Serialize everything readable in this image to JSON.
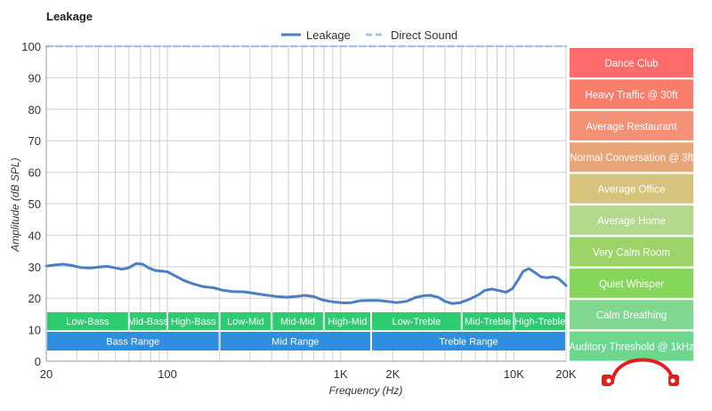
{
  "chart_data": {
    "type": "line",
    "title": "Leakage",
    "xlabel": "Frequency (Hz)",
    "ylabel": "Amplitude (dB SPL)",
    "x_scale": "log",
    "xlim": [
      20,
      20000
    ],
    "ylim": [
      0,
      100
    ],
    "x_ticks": [
      {
        "value": 20,
        "label": "20"
      },
      {
        "value": 100,
        "label": "100"
      },
      {
        "value": 1000,
        "label": "1K"
      },
      {
        "value": 2000,
        "label": "2K"
      },
      {
        "value": 10000,
        "label": "10K"
      },
      {
        "value": 20000,
        "label": "20K"
      }
    ],
    "y_ticks": [
      0,
      10,
      20,
      30,
      40,
      50,
      60,
      70,
      80,
      90,
      100
    ],
    "grid": true,
    "legend_position": "top-center",
    "series": [
      {
        "name": "Leakage",
        "color": "#4a7fc1",
        "style": "solid",
        "points": [
          [
            20,
            30.2
          ],
          [
            22,
            30.5
          ],
          [
            25,
            30.8
          ],
          [
            28,
            30.4
          ],
          [
            32,
            29.7
          ],
          [
            36,
            29.6
          ],
          [
            40,
            29.9
          ],
          [
            45,
            30.1
          ],
          [
            50,
            29.6
          ],
          [
            55,
            29.2
          ],
          [
            60,
            29.7
          ],
          [
            66,
            31.0
          ],
          [
            72,
            30.8
          ],
          [
            78,
            29.6
          ],
          [
            85,
            28.8
          ],
          [
            92,
            28.6
          ],
          [
            100,
            28.4
          ],
          [
            110,
            27.2
          ],
          [
            125,
            25.6
          ],
          [
            140,
            24.6
          ],
          [
            160,
            23.7
          ],
          [
            185,
            23.3
          ],
          [
            210,
            22.5
          ],
          [
            240,
            22.1
          ],
          [
            280,
            22.0
          ],
          [
            320,
            21.5
          ],
          [
            370,
            21.0
          ],
          [
            430,
            20.5
          ],
          [
            490,
            20.3
          ],
          [
            560,
            20.6
          ],
          [
            620,
            20.9
          ],
          [
            700,
            20.5
          ],
          [
            780,
            19.5
          ],
          [
            860,
            19.0
          ],
          [
            950,
            18.7
          ],
          [
            1050,
            18.5
          ],
          [
            1150,
            18.6
          ],
          [
            1300,
            19.2
          ],
          [
            1450,
            19.3
          ],
          [
            1650,
            19.3
          ],
          [
            1850,
            19.0
          ],
          [
            2100,
            18.6
          ],
          [
            2400,
            19.0
          ],
          [
            2700,
            20.2
          ],
          [
            3000,
            20.8
          ],
          [
            3300,
            20.9
          ],
          [
            3650,
            20.3
          ],
          [
            4000,
            19.0
          ],
          [
            4400,
            18.3
          ],
          [
            4900,
            18.6
          ],
          [
            5500,
            19.6
          ],
          [
            6200,
            21.0
          ],
          [
            6800,
            22.5
          ],
          [
            7500,
            22.9
          ],
          [
            8200,
            22.4
          ],
          [
            9000,
            21.9
          ],
          [
            9800,
            23.0
          ],
          [
            10500,
            25.5
          ],
          [
            11300,
            28.5
          ],
          [
            12200,
            29.4
          ],
          [
            13200,
            28.2
          ],
          [
            14300,
            26.8
          ],
          [
            15500,
            26.5
          ],
          [
            16800,
            26.8
          ],
          [
            18000,
            26.3
          ],
          [
            19200,
            25.0
          ],
          [
            20000,
            24.0
          ]
        ]
      },
      {
        "name": "Direct Sound",
        "color": "#a9c3ea",
        "style": "dashed",
        "points": [
          [
            20,
            100
          ],
          [
            20000,
            100
          ]
        ]
      }
    ],
    "frequency_bands": [
      {
        "label": "Low-Bass",
        "from": 20,
        "to": 60,
        "row": "upper"
      },
      {
        "label": "Mid-Bass",
        "from": 60,
        "to": 100,
        "row": "upper"
      },
      {
        "label": "High-Bass",
        "from": 100,
        "to": 200,
        "row": "upper"
      },
      {
        "label": "Low-Mid",
        "from": 200,
        "to": 400,
        "row": "upper"
      },
      {
        "label": "Mid-Mid",
        "from": 400,
        "to": 800,
        "row": "upper"
      },
      {
        "label": "High-Mid",
        "from": 800,
        "to": 1500,
        "row": "upper"
      },
      {
        "label": "Low-Treble",
        "from": 1500,
        "to": 5000,
        "row": "upper"
      },
      {
        "label": "Mid-Treble",
        "from": 5000,
        "to": 10000,
        "row": "upper"
      },
      {
        "label": "High-Treble",
        "from": 10000,
        "to": 20000,
        "row": "upper"
      },
      {
        "label": "Bass Range",
        "from": 20,
        "to": 200,
        "row": "lower"
      },
      {
        "label": "Mid Range",
        "from": 200,
        "to": 1500,
        "row": "lower"
      },
      {
        "label": "Treble Range",
        "from": 1500,
        "to": 20000,
        "row": "lower"
      }
    ],
    "band_colors": {
      "upper": "#2ecc71",
      "lower": "#2e8fe0"
    },
    "reference_levels": [
      {
        "label": "Dance Club",
        "color": "#ff6b6b"
      },
      {
        "label": "Heavy Traffic @ 30ft",
        "color": "#fa7d6c"
      },
      {
        "label": "Average Restaurant",
        "color": "#f39176"
      },
      {
        "label": "Normal Conversation @ 3ft",
        "color": "#e8a578"
      },
      {
        "label": "Average Office",
        "color": "#d7c47c"
      },
      {
        "label": "Average Home",
        "color": "#b4d88c"
      },
      {
        "label": "Very Calm Room",
        "color": "#9dd46a"
      },
      {
        "label": "Quiet Whisper",
        "color": "#86d65c"
      },
      {
        "label": "Calm Breathing",
        "color": "#7fd790"
      },
      {
        "label": "Auditory Threshold @ 1kHz",
        "color": "#6bd88e"
      }
    ],
    "gridline_color": "#d0d0d0",
    "logo_color": "#e02020"
  }
}
